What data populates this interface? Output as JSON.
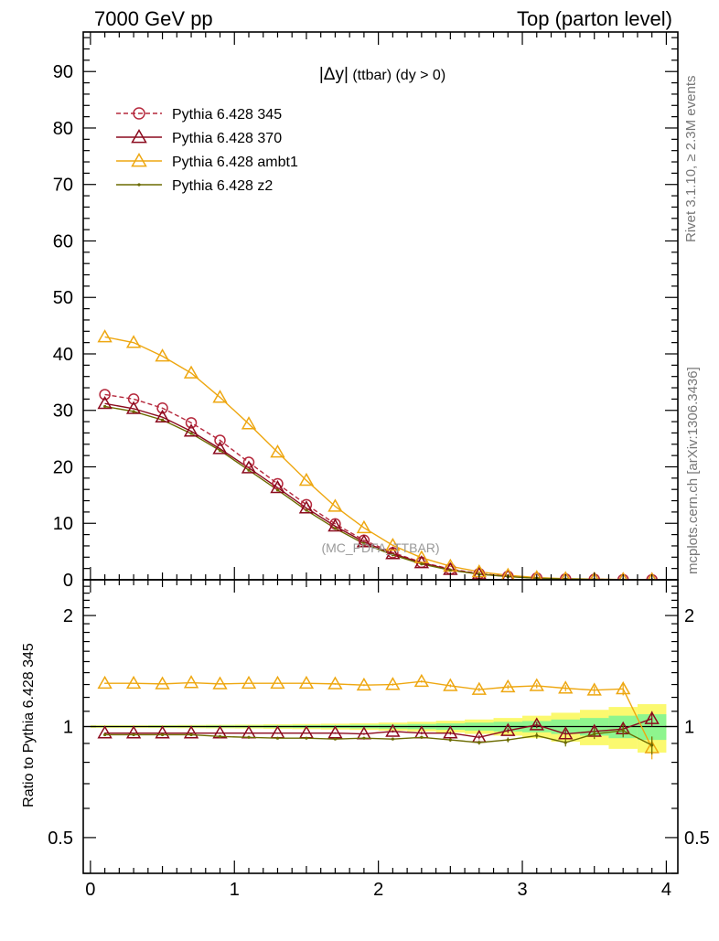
{
  "header": {
    "left": "7000 GeV pp",
    "right": "Top (parton level)"
  },
  "side_labels": {
    "rivet": "Rivet 3.1.10, ≥ 2.3M events",
    "mcplots": "mcplots.cern.ch [arXiv:1306.3436]"
  },
  "watermark": "(MC_PDFA_TTBAR)",
  "chart_data": [
    {
      "type": "line",
      "title": "|Δy| (ttbar) (dy > 0)",
      "title_main": "|Δy|",
      "title_rest": " (ttbar) (dy > 0)",
      "xlim": [
        -0.05,
        4.08
      ],
      "ylim": [
        0,
        97
      ],
      "yticks": [
        "0",
        "10",
        "20",
        "30",
        "40",
        "50",
        "60",
        "70",
        "80",
        "90"
      ],
      "legend_position": "top-left",
      "x": [
        0.1,
        0.3,
        0.5,
        0.7,
        0.9,
        1.1,
        1.3,
        1.5,
        1.7,
        1.9,
        2.1,
        2.3,
        2.5,
        2.7,
        2.9,
        3.1,
        3.3,
        3.5,
        3.7,
        3.9
      ],
      "series": [
        {
          "name": "Pythia 6.428 345",
          "color": "#b5283c",
          "marker": "circle-open",
          "dashed": true,
          "values": [
            32.8,
            32.0,
            30.4,
            27.8,
            24.7,
            20.8,
            17.0,
            13.3,
            9.9,
            7.0,
            4.8,
            3.1,
            1.9,
            1.1,
            0.6,
            0.3,
            0.15,
            0.08,
            0.03,
            0.01
          ]
        },
        {
          "name": "Pythia 6.428 370",
          "color": "#8b0a1e",
          "marker": "triangle-open",
          "dashed": false,
          "values": [
            31.2,
            30.3,
            28.8,
            26.3,
            23.2,
            19.8,
            16.3,
            12.7,
            9.5,
            6.7,
            4.6,
            3.0,
            1.8,
            1.0,
            0.6,
            0.3,
            0.15,
            0.08,
            0.03,
            0.01
          ]
        },
        {
          "name": "Pythia 6.428 ambt1",
          "color": "#eea711",
          "marker": "triangle-open",
          "dashed": false,
          "values": [
            43.0,
            42.0,
            39.6,
            36.6,
            32.3,
            27.6,
            22.6,
            17.6,
            13.0,
            9.2,
            6.1,
            3.9,
            2.4,
            1.4,
            0.8,
            0.4,
            0.2,
            0.1,
            0.05,
            0.01
          ]
        },
        {
          "name": "Pythia 6.428 z2",
          "color": "#6b6b00",
          "marker": "dot",
          "dashed": false,
          "values": [
            30.7,
            29.8,
            28.3,
            25.9,
            22.9,
            19.4,
            15.9,
            12.3,
            9.1,
            6.4,
            4.4,
            2.8,
            1.7,
            1.0,
            0.55,
            0.28,
            0.14,
            0.07,
            0.03,
            0.01
          ]
        }
      ]
    },
    {
      "type": "line",
      "ylabel": "Ratio to Pythia 6.428 345",
      "xlim": [
        -0.05,
        4.08
      ],
      "ylim": [
        0.4,
        2.5
      ],
      "yscale": "log",
      "yticks": [
        {
          "value": 0.5,
          "label": "0.5"
        },
        {
          "value": 1,
          "label": "1"
        },
        {
          "value": 2,
          "label": "2"
        }
      ],
      "xticks": [
        "0",
        "1",
        "2",
        "3",
        "4"
      ],
      "x": [
        0.1,
        0.3,
        0.5,
        0.7,
        0.9,
        1.1,
        1.3,
        1.5,
        1.7,
        1.9,
        2.1,
        2.3,
        2.5,
        2.7,
        2.9,
        3.1,
        3.3,
        3.5,
        3.7,
        3.9
      ],
      "band_inner": [
        0.004,
        0.004,
        0.005,
        0.005,
        0.006,
        0.006,
        0.007,
        0.008,
        0.009,
        0.011,
        0.013,
        0.016,
        0.02,
        0.025,
        0.03,
        0.035,
        0.045,
        0.055,
        0.07,
        0.08
      ],
      "band_outer": [
        0.008,
        0.008,
        0.009,
        0.01,
        0.011,
        0.012,
        0.014,
        0.016,
        0.018,
        0.021,
        0.025,
        0.03,
        0.037,
        0.045,
        0.055,
        0.07,
        0.09,
        0.11,
        0.13,
        0.15
      ],
      "band_colors": {
        "inner": "#8ef58e",
        "outer": "#fbf96f"
      },
      "series": [
        {
          "name": "Pythia 6.428 370",
          "color": "#8b0a1e",
          "marker": "triangle-open",
          "values": [
            0.96,
            0.96,
            0.96,
            0.96,
            0.96,
            0.96,
            0.96,
            0.96,
            0.96,
            0.955,
            0.97,
            0.96,
            0.96,
            0.935,
            0.975,
            1.01,
            0.955,
            0.97,
            0.985,
            1.05
          ],
          "err": [
            0.003,
            0.003,
            0.003,
            0.003,
            0.004,
            0.004,
            0.004,
            0.004,
            0.005,
            0.006,
            0.007,
            0.008,
            0.01,
            0.012,
            0.015,
            0.02,
            0.025,
            0.03,
            0.04,
            0.05
          ]
        },
        {
          "name": "Pythia 6.428 ambt1",
          "color": "#eea711",
          "marker": "triangle-open",
          "values": [
            1.31,
            1.31,
            1.305,
            1.315,
            1.305,
            1.31,
            1.31,
            1.31,
            1.305,
            1.295,
            1.3,
            1.325,
            1.29,
            1.26,
            1.28,
            1.29,
            1.27,
            1.255,
            1.265,
            0.875
          ],
          "err": [
            0.004,
            0.004,
            0.004,
            0.005,
            0.005,
            0.005,
            0.006,
            0.006,
            0.007,
            0.008,
            0.009,
            0.01,
            0.012,
            0.015,
            0.018,
            0.02,
            0.025,
            0.03,
            0.05,
            0.06
          ]
        },
        {
          "name": "Pythia 6.428 z2",
          "color": "#6b6b00",
          "marker": "dot",
          "values": [
            0.95,
            0.95,
            0.95,
            0.95,
            0.94,
            0.935,
            0.93,
            0.93,
            0.925,
            0.93,
            0.925,
            0.935,
            0.92,
            0.905,
            0.92,
            0.945,
            0.905,
            0.955,
            0.975,
            0.89
          ],
          "err": [
            0.003,
            0.003,
            0.003,
            0.003,
            0.004,
            0.004,
            0.004,
            0.004,
            0.005,
            0.006,
            0.007,
            0.008,
            0.01,
            0.012,
            0.014,
            0.018,
            0.022,
            0.03,
            0.04,
            0.05
          ]
        }
      ]
    }
  ]
}
